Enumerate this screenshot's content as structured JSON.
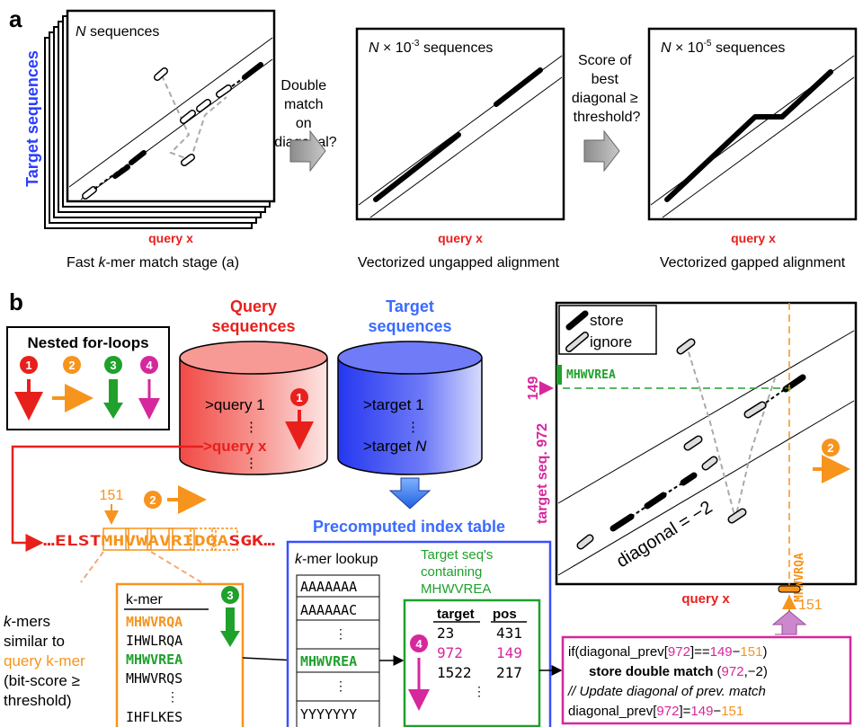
{
  "panel_a": {
    "label": "a",
    "side_label": "Target sequences",
    "stage1": {
      "seq_n": "N",
      "seq_rest": " sequences",
      "axis": "query x",
      "caption_pre": "Fast ",
      "caption_k": "k",
      "caption_post": "-mer match stage (a)"
    },
    "arrow1_lines": [
      "Double",
      "match",
      "on",
      "diagonal?"
    ],
    "stage2": {
      "seq_n": "N",
      "seq_mid": " × 10",
      "seq_exp": "-3",
      "seq_rest": " sequences",
      "axis": "query x",
      "caption": "Vectorized ungapped alignment"
    },
    "arrow2_lines": [
      "Score of",
      "best",
      "diagonal ≥",
      "threshold?"
    ],
    "stage3": {
      "seq_n": "N",
      "seq_mid": " × 10",
      "seq_exp": "-5",
      "seq_rest": " sequences",
      "axis": "query x",
      "caption": "Vectorized gapped alignment"
    }
  },
  "panel_b": {
    "label": "b",
    "loops": {
      "title": "Nested for-loops",
      "badges": [
        "1",
        "2",
        "3",
        "4"
      ]
    },
    "query_db": {
      "title1": "Query",
      "title2": "sequences",
      "row1": ">query 1",
      "dots": "⋮",
      "row_x": ">query x",
      "badge": "1"
    },
    "target_db": {
      "title1": "Target",
      "title2": "sequences",
      "row1": ">target 1",
      "dots": "⋮",
      "row_n_pre": ">target ",
      "row_n_var": "N"
    },
    "query_seq": {
      "pre": "…ELST",
      "kmer": "MHVWAVRIDQA",
      "post": "SGK…",
      "pos": "151",
      "badge": "2"
    },
    "kmer_list": {
      "header": "k-mer",
      "items": [
        "MHWVRQA",
        "IHWLRQA",
        "MHWVREA",
        "MHWVRQS",
        "⋮",
        "IHFLKES"
      ],
      "badge": "3"
    },
    "similar": {
      "l1_k": "k",
      "l1": "-mers",
      "l2": "similar to",
      "l3": "query k-mer",
      "l4": "(bit-score ≥",
      "l5": "threshold)"
    },
    "index": {
      "title": "Precomputed index table",
      "lookup_pre": "k",
      "lookup_post": "-mer lookup",
      "rows": [
        "AAAAAAA",
        "AAAAAAC",
        "⋮",
        "MHWVREA",
        "⋮",
        "YYYYYYY"
      ],
      "containing": [
        "Target seq's",
        "containing",
        "MHWVREA"
      ],
      "table_headers": [
        "target",
        "pos"
      ],
      "table_rows": [
        [
          "23",
          "431"
        ],
        [
          "972",
          "149"
        ],
        [
          "1522",
          "217"
        ]
      ],
      "table_dots": "⋮",
      "badge": "4"
    },
    "dotplot": {
      "legend_store": "store",
      "legend_ignore": "ignore",
      "y_pos": "149",
      "y_label": "target seq. 972",
      "green_kmer": "MHWVREA",
      "orange_kmer": "MHWVRQA",
      "x_pos": "151",
      "diagonal": "diagonal = −2",
      "x_label": "query x",
      "badge": "2"
    },
    "code": {
      "l1": [
        [
          "if(diagonal_prev[",
          "k"
        ],
        [
          "972",
          "m"
        ],
        [
          "]==",
          "k"
        ],
        [
          "149",
          "m"
        ],
        [
          "−",
          "k"
        ],
        [
          "151",
          "o"
        ],
        [
          ")",
          "k"
        ]
      ],
      "l2": [
        [
          "store double match",
          "kb"
        ],
        [
          " (",
          "k"
        ],
        [
          "972",
          "m"
        ],
        [
          ",−2)",
          "k"
        ]
      ],
      "l3": [
        [
          "// Update diagonal of prev. match",
          "ki"
        ]
      ],
      "l4": [
        [
          "diagonal_prev[",
          "k"
        ],
        [
          "972",
          "m"
        ],
        [
          "]=",
          "k"
        ],
        [
          "149",
          "m"
        ],
        [
          "−",
          "k"
        ],
        [
          "151",
          "o"
        ]
      ]
    }
  },
  "colors": {
    "red": "#e8201c",
    "orange": "#f7941d",
    "green": "#1fa12b",
    "magenta": "#d6279c",
    "blue": "#3a4fff",
    "gray": "#999999"
  }
}
